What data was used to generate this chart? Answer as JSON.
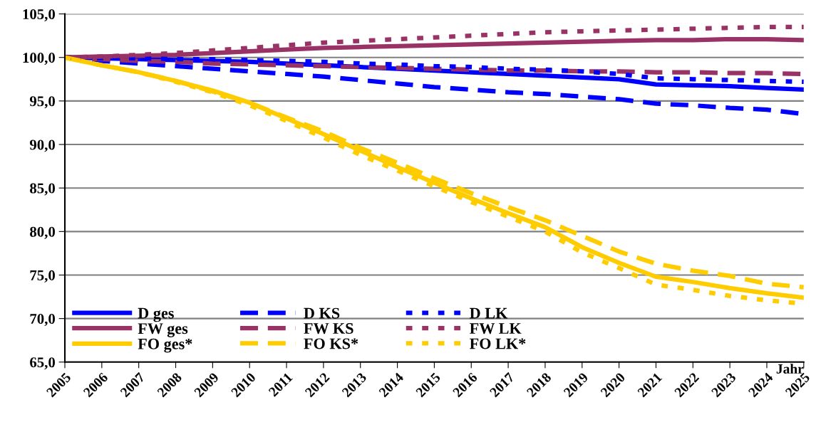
{
  "chart_data": {
    "type": "line",
    "categories": [
      "2005",
      "2006",
      "2007",
      "2008",
      "2009",
      "2010",
      "2011",
      "2012",
      "2013",
      "2014",
      "2015",
      "2016",
      "2017",
      "2018",
      "2019",
      "2020",
      "2021",
      "2022",
      "2023",
      "2024",
      "2025"
    ],
    "xlabel": "Jahr",
    "ylim": [
      65,
      105
    ],
    "yticks": [
      {
        "value": 65,
        "label": "65,0"
      },
      {
        "value": 70,
        "label": "70,0"
      },
      {
        "value": 75,
        "label": "75,0"
      },
      {
        "value": 80,
        "label": "80,0"
      },
      {
        "value": 85,
        "label": "85,0"
      },
      {
        "value": 90,
        "label": "90,0"
      },
      {
        "value": 95,
        "label": "95,0"
      },
      {
        "value": 100,
        "label": "100,0"
      },
      {
        "value": 105,
        "label": "105,0"
      }
    ],
    "grid": "y",
    "legend": "bottom left",
    "marker": "none",
    "series": [
      {
        "name": "D ges",
        "color": "#0000ff",
        "line_style": "solid",
        "values": [
          100,
          99.9,
          99.8,
          99.7,
          99.6,
          99.5,
          99.3,
          99.1,
          98.9,
          98.7,
          98.5,
          98.3,
          98.1,
          97.9,
          97.7,
          97.5,
          96.9,
          96.8,
          96.7,
          96.5,
          96.3
        ]
      },
      {
        "name": "FW ges",
        "color": "#993366",
        "line_style": "solid",
        "values": [
          100,
          100.1,
          100.2,
          100.3,
          100.5,
          100.7,
          100.9,
          101.1,
          101.2,
          101.3,
          101.4,
          101.5,
          101.6,
          101.7,
          101.8,
          101.9,
          102.0,
          102.0,
          102.1,
          102.1,
          102.0
        ]
      },
      {
        "name": "FO ges*",
        "color": "#ffcc00",
        "line_style": "solid",
        "values": [
          100,
          99.1,
          98.3,
          97.3,
          96.2,
          94.8,
          93.0,
          91.2,
          89.3,
          87.4,
          85.6,
          83.8,
          82.1,
          80.5,
          78.2,
          76.4,
          74.8,
          74.2,
          73.5,
          72.9,
          72.4
        ]
      },
      {
        "name": "D KS",
        "color": "#0000ff",
        "line_style": "dashed",
        "values": [
          100,
          99.6,
          99.3,
          99.0,
          98.7,
          98.4,
          98.1,
          97.8,
          97.4,
          97.0,
          96.6,
          96.3,
          96.0,
          95.8,
          95.5,
          95.2,
          94.7,
          94.5,
          94.2,
          94.0,
          93.5
        ]
      },
      {
        "name": "FW KS",
        "color": "#993366",
        "line_style": "dashed",
        "values": [
          100,
          99.8,
          99.6,
          99.5,
          99.3,
          99.2,
          99.1,
          99.0,
          98.9,
          98.8,
          98.7,
          98.6,
          98.5,
          98.5,
          98.4,
          98.4,
          98.3,
          98.3,
          98.2,
          98.2,
          98.1
        ]
      },
      {
        "name": "FO KS*",
        "color": "#ffcc00",
        "line_style": "dashed",
        "values": [
          100,
          99.1,
          98.3,
          97.3,
          96.1,
          94.8,
          93.1,
          91.5,
          89.6,
          87.9,
          86.1,
          84.4,
          82.8,
          81.3,
          79.5,
          77.7,
          76.3,
          75.5,
          74.9,
          74.0,
          73.6
        ]
      },
      {
        "name": "D LK",
        "color": "#0000ff",
        "line_style": "dotted",
        "values": [
          100,
          99.9,
          99.9,
          99.8,
          99.8,
          99.7,
          99.6,
          99.5,
          99.3,
          99.2,
          99.0,
          98.9,
          98.7,
          98.6,
          98.4,
          98.1,
          97.6,
          97.5,
          97.4,
          97.3,
          97.2
        ]
      },
      {
        "name": "FW LK",
        "color": "#993366",
        "line_style": "dotted",
        "values": [
          100,
          100.1,
          100.3,
          100.5,
          100.8,
          101.1,
          101.4,
          101.7,
          101.9,
          102.1,
          102.3,
          102.5,
          102.7,
          102.9,
          103.0,
          103.1,
          103.2,
          103.3,
          103.4,
          103.5,
          103.5
        ]
      },
      {
        "name": "FO LK*",
        "color": "#ffcc00",
        "line_style": "dotted",
        "values": [
          100,
          99.1,
          98.3,
          97.2,
          96.0,
          94.5,
          92.7,
          90.8,
          88.8,
          87.0,
          85.2,
          83.4,
          81.7,
          80.0,
          77.6,
          75.8,
          73.9,
          73.3,
          72.6,
          72.1,
          71.7
        ]
      }
    ]
  }
}
